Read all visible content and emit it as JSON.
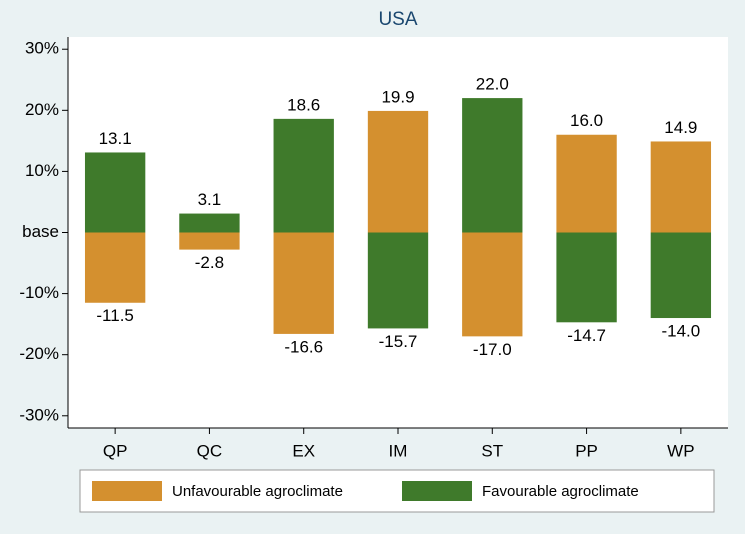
{
  "chart_data": {
    "type": "bar",
    "title": "USA",
    "categories": [
      "QP",
      "QC",
      "EX",
      "IM",
      "ST",
      "PP",
      "WP"
    ],
    "series": [
      {
        "name": "Unfavourable agroclimate",
        "color": "#d4902f",
        "values": [
          -11.5,
          -2.8,
          -16.6,
          19.9,
          -17.0,
          16.0,
          14.9
        ],
        "value_labels": [
          "-11.5",
          "-2.8",
          "-16.6",
          "19.9",
          "-17.0",
          "16.0",
          "14.9"
        ]
      },
      {
        "name": "Favourable agroclimate",
        "color": "#3f7a2b",
        "values": [
          13.1,
          3.1,
          18.6,
          -15.7,
          22.0,
          -14.7,
          -14.0
        ],
        "value_labels": [
          "13.1",
          "3.1",
          "18.6",
          "-15.7",
          "22.0",
          "-14.7",
          "-14.0"
        ]
      }
    ],
    "ylim": [
      -32,
      32
    ],
    "yticks": [
      {
        "value": 30,
        "label": "30%"
      },
      {
        "value": 20,
        "label": "20%"
      },
      {
        "value": 10,
        "label": "10%"
      },
      {
        "value": 0,
        "label": "base"
      },
      {
        "value": -10,
        "label": "-10%"
      },
      {
        "value": -20,
        "label": "-20%"
      },
      {
        "value": -30,
        "label": "-30%"
      }
    ],
    "legend": "bottom"
  }
}
